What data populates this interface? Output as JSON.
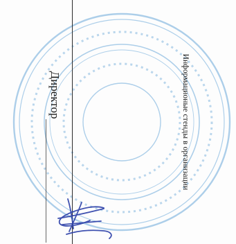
{
  "document": {
    "heading": "Информационые стенды в организации",
    "signatory_role": "Директор"
  },
  "colors": {
    "stamp": "#3f8fcf",
    "signature": "#2b3fa8",
    "text": "#1a1a1a"
  }
}
